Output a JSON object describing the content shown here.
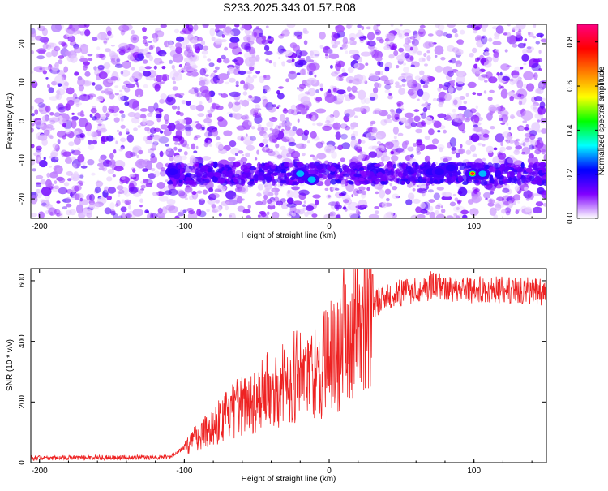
{
  "title": "S233.2025.343.01.57.R08",
  "chart_data": [
    {
      "type": "heatmap",
      "xlabel": "Height of straight line (km)",
      "ylabel": "Frequency (Hz)",
      "xlim": [
        -206,
        150
      ],
      "ylim": [
        -25,
        25
      ],
      "xticks": [
        -200,
        -100,
        0,
        100
      ],
      "yticks": [
        -20,
        -10,
        0,
        10,
        20
      ],
      "colorbar": {
        "label": "Normalized spectral amplitude",
        "range": [
          0,
          0.88
        ],
        "ticks": [
          "0.0",
          "0.2",
          "0.4",
          "0.6",
          "0.8"
        ],
        "colors": [
          "#ffffff",
          "#8000ff",
          "#0000ff",
          "#00ffff",
          "#00ff00",
          "#ffff00",
          "#ff8000",
          "#ff0000",
          "#ff0080"
        ]
      },
      "band": {
        "frequency": -13.5,
        "x_start": -110,
        "x_end": 150
      },
      "hotspots": [
        {
          "x": -108,
          "y": -13,
          "amp": 0.22
        },
        {
          "x": -20,
          "y": -13.5,
          "amp": 0.3
        },
        {
          "x": -12,
          "y": -15,
          "amp": 0.32
        },
        {
          "x": 70,
          "y": -13,
          "amp": 0.28
        },
        {
          "x": 76,
          "y": -13,
          "amp": 0.26
        },
        {
          "x": 84,
          "y": -12,
          "amp": 0.2
        },
        {
          "x": 99,
          "y": -13.5,
          "amp": 0.88
        },
        {
          "x": 106,
          "y": -13.5,
          "amp": 0.36
        }
      ]
    },
    {
      "type": "line",
      "xlabel": "Height of straight line (km)",
      "ylabel": "SNR (10 * v/v)",
      "xlim": [
        -206,
        150
      ],
      "ylim": [
        0,
        640
      ],
      "xticks": [
        -200,
        -100,
        0,
        100
      ],
      "yticks": [
        0,
        200,
        400,
        600
      ],
      "color": "#ee2222",
      "envelope_x": [
        -206,
        -110,
        -100,
        -90,
        -75,
        -60,
        -45,
        -30,
        -20,
        -10,
        0,
        8,
        15,
        20,
        30,
        40,
        50,
        70,
        100,
        130,
        150
      ],
      "envelope_y": [
        15,
        18,
        50,
        90,
        140,
        190,
        230,
        270,
        300,
        290,
        350,
        360,
        430,
        470,
        520,
        550,
        560,
        580,
        570,
        570,
        560
      ],
      "spike_x": [
        10,
        30,
        70
      ],
      "spike_y": [
        640,
        620,
        630
      ]
    }
  ]
}
